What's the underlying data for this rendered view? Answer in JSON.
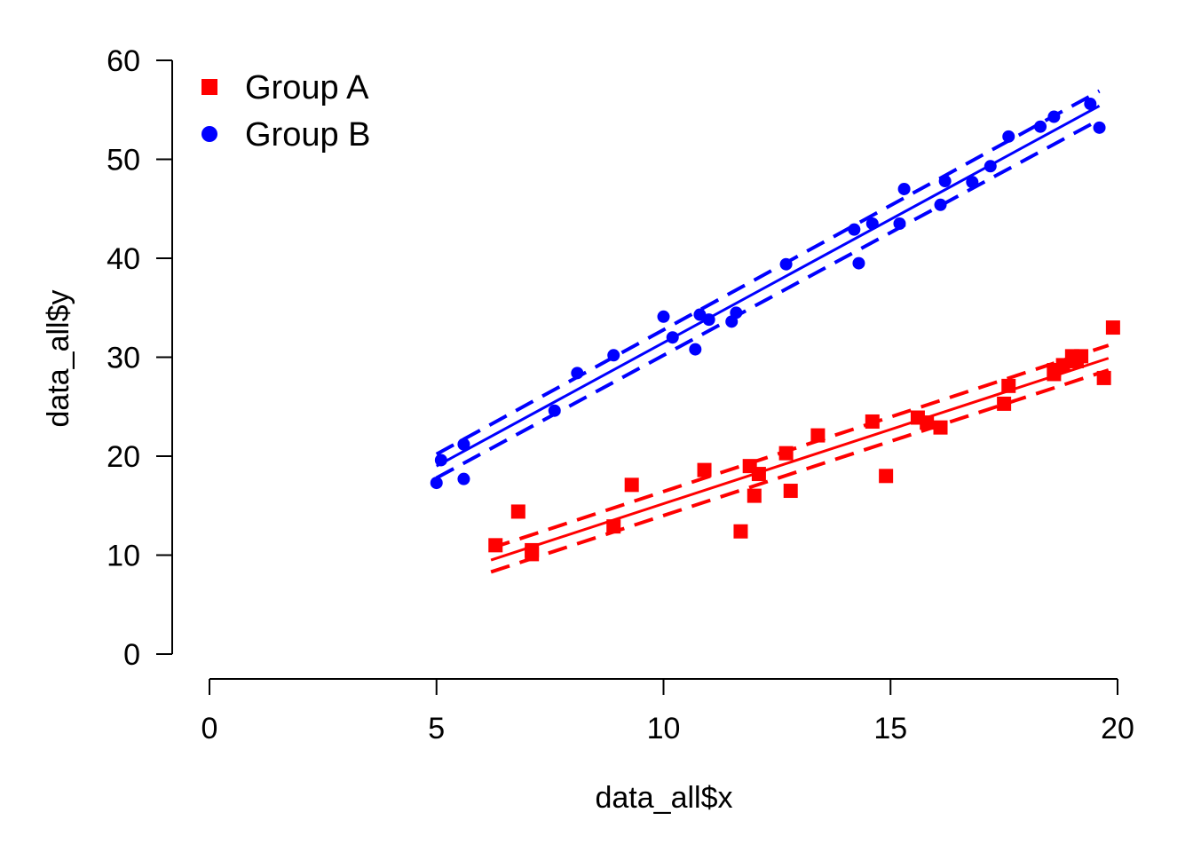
{
  "chart_data": {
    "type": "scatter",
    "title": "",
    "xlabel": "data_all$x",
    "ylabel": "data_all$y",
    "xlim": [
      0,
      20
    ],
    "ylim": [
      0,
      60
    ],
    "xticks": [
      0,
      5,
      10,
      15,
      20
    ],
    "yticks": [
      0,
      10,
      20,
      30,
      40,
      50,
      60
    ],
    "grid": false,
    "legend": {
      "position": "top-left",
      "entries": [
        "Group A",
        "Group B"
      ]
    },
    "series": [
      {
        "name": "Group A",
        "color": "#ff0000",
        "marker": "square",
        "points": [
          {
            "x": 6.3,
            "y": 11.0
          },
          {
            "x": 6.8,
            "y": 14.4
          },
          {
            "x": 7.1,
            "y": 10.5
          },
          {
            "x": 7.1,
            "y": 10.1
          },
          {
            "x": 8.9,
            "y": 12.9
          },
          {
            "x": 9.3,
            "y": 17.1
          },
          {
            "x": 10.9,
            "y": 18.6
          },
          {
            "x": 11.7,
            "y": 12.4
          },
          {
            "x": 11.9,
            "y": 19.0
          },
          {
            "x": 12.0,
            "y": 16.0
          },
          {
            "x": 12.1,
            "y": 18.2
          },
          {
            "x": 12.7,
            "y": 20.3
          },
          {
            "x": 12.8,
            "y": 16.5
          },
          {
            "x": 13.4,
            "y": 22.1
          },
          {
            "x": 14.6,
            "y": 23.5
          },
          {
            "x": 14.9,
            "y": 18.0
          },
          {
            "x": 15.6,
            "y": 23.9
          },
          {
            "x": 15.8,
            "y": 23.4
          },
          {
            "x": 16.1,
            "y": 22.9
          },
          {
            "x": 17.5,
            "y": 25.3
          },
          {
            "x": 17.6,
            "y": 27.1
          },
          {
            "x": 18.6,
            "y": 28.3
          },
          {
            "x": 18.6,
            "y": 28.7
          },
          {
            "x": 18.8,
            "y": 29.2
          },
          {
            "x": 19.0,
            "y": 30.1
          },
          {
            "x": 19.1,
            "y": 29.6
          },
          {
            "x": 19.2,
            "y": 30.1
          },
          {
            "x": 19.7,
            "y": 27.9
          },
          {
            "x": 19.9,
            "y": 33.0
          }
        ],
        "fit": {
          "x": [
            6.2,
            19.8
          ],
          "y": [
            9.5,
            29.9
          ]
        },
        "ci_upper": {
          "x": [
            6.2,
            19.8
          ],
          "y": [
            10.7,
            31.2
          ]
        },
        "ci_lower": {
          "x": [
            6.2,
            19.8
          ],
          "y": [
            8.3,
            28.7
          ]
        }
      },
      {
        "name": "Group B",
        "color": "#0000ff",
        "marker": "circle",
        "points": [
          {
            "x": 5.0,
            "y": 17.3
          },
          {
            "x": 5.1,
            "y": 19.6
          },
          {
            "x": 5.6,
            "y": 21.2
          },
          {
            "x": 5.6,
            "y": 17.7
          },
          {
            "x": 7.6,
            "y": 24.6
          },
          {
            "x": 8.1,
            "y": 28.4
          },
          {
            "x": 8.9,
            "y": 30.2
          },
          {
            "x": 10.0,
            "y": 34.1
          },
          {
            "x": 10.2,
            "y": 32.0
          },
          {
            "x": 10.7,
            "y": 30.8
          },
          {
            "x": 10.8,
            "y": 34.3
          },
          {
            "x": 11.0,
            "y": 33.8
          },
          {
            "x": 11.5,
            "y": 33.6
          },
          {
            "x": 11.6,
            "y": 34.5
          },
          {
            "x": 12.7,
            "y": 39.4
          },
          {
            "x": 14.2,
            "y": 42.9
          },
          {
            "x": 14.3,
            "y": 39.5
          },
          {
            "x": 14.6,
            "y": 43.5
          },
          {
            "x": 15.2,
            "y": 43.5
          },
          {
            "x": 15.3,
            "y": 47.0
          },
          {
            "x": 16.1,
            "y": 45.4
          },
          {
            "x": 16.2,
            "y": 47.8
          },
          {
            "x": 16.8,
            "y": 47.7
          },
          {
            "x": 17.2,
            "y": 49.3
          },
          {
            "x": 17.6,
            "y": 52.3
          },
          {
            "x": 18.3,
            "y": 53.3
          },
          {
            "x": 18.6,
            "y": 54.3
          },
          {
            "x": 19.4,
            "y": 55.6
          },
          {
            "x": 19.6,
            "y": 53.2
          }
        ],
        "fit": {
          "x": [
            5.0,
            19.6
          ],
          "y": [
            19.0,
            55.4
          ]
        },
        "ci_upper": {
          "x": [
            5.0,
            19.6
          ],
          "y": [
            20.2,
            56.9
          ]
        },
        "ci_lower": {
          "x": [
            5.0,
            19.6
          ],
          "y": [
            17.8,
            54.0
          ]
        }
      }
    ]
  }
}
